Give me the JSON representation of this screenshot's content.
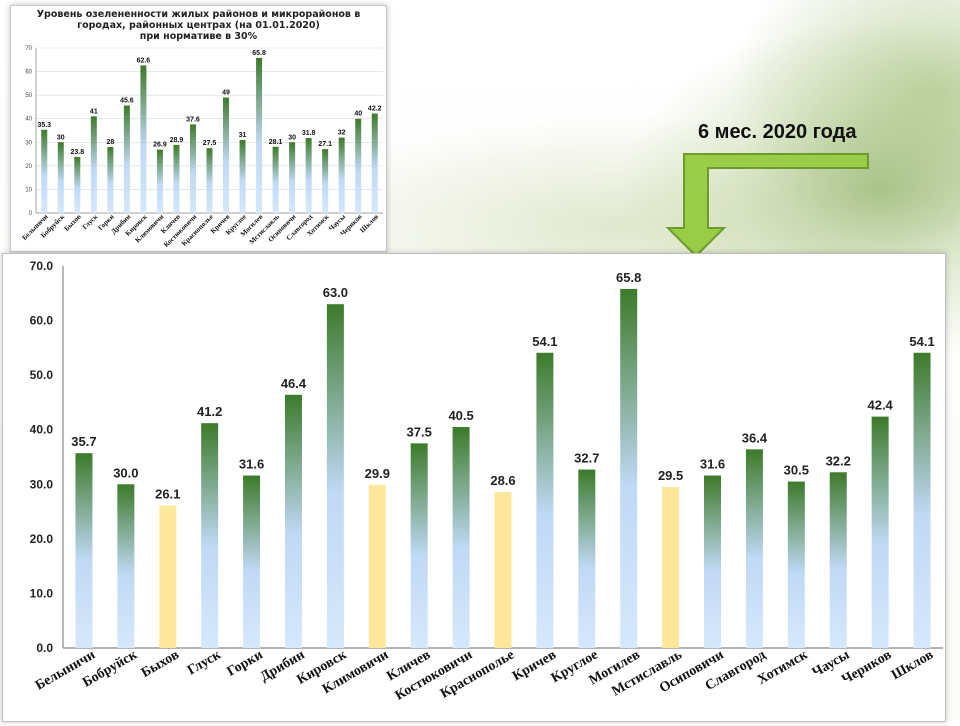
{
  "colors": {
    "bar_top": "#3d7a2a",
    "bar_bottom": "#d6e8fb",
    "bar_mid": "#c0d9f5",
    "highlight": "#fde79a",
    "arrow_fill": "#9acd47",
    "arrow_stroke": "#6f9a2c"
  },
  "period_label": "6 мес. 2020 года",
  "chart_data": [
    {
      "id": "previous",
      "type": "bar",
      "title_lines": [
        "Уровень озелененности жилых районов и микрорайонов в",
        "городах, районных центрах (на 01.01.2020)",
        "при нормативе в 30%"
      ],
      "categories": [
        "Белыничи",
        "Бобруйск",
        "Быхов",
        "Глуск",
        "Горки",
        "Дрибин",
        "Кировск",
        "Климовичи",
        "Кличев",
        "Костюковичи",
        "Краснополье",
        "Кричев",
        "Круглое",
        "Могилев",
        "Мстиславль",
        "Осиповичи",
        "Славгород",
        "Хотимск",
        "Чаусы",
        "Чериков",
        "Шклов"
      ],
      "values": [
        35.3,
        30,
        23.8,
        41,
        28,
        45.6,
        62.6,
        26.9,
        28.9,
        37.6,
        27.5,
        49,
        31,
        65.8,
        28.1,
        30,
        31.8,
        27.1,
        32,
        40,
        42.2
      ],
      "labels": [
        "35.3",
        "30",
        "23.8",
        "41",
        "28",
        "45.6",
        "62.6",
        "26.9",
        "28.9",
        "37.6",
        "27.5",
        "49",
        "31",
        "65.8",
        "28.1",
        "30",
        "31.8",
        "27.1",
        "32",
        "40",
        "42.2"
      ],
      "ylim": [
        0,
        70
      ],
      "yticks": [
        "0",
        "10",
        "20",
        "30",
        "40",
        "50",
        "60",
        "70"
      ],
      "ytick_values": [
        0,
        10,
        20,
        30,
        40,
        50,
        60,
        70
      ],
      "grid": true
    },
    {
      "id": "current",
      "type": "bar",
      "title": "",
      "categories": [
        "Белыничи",
        "Бобруйск",
        "Быхов",
        "Глуск",
        "Горки",
        "Дрибин",
        "Кировск",
        "Климовичи",
        "Кличев",
        "Костюковичи",
        "Краснополье",
        "Кричев",
        "Круглое",
        "Могилев",
        "Мстиславль",
        "Осиповичи",
        "Славгород",
        "Хотимск",
        "Чаусы",
        "Чериков",
        "Шклов"
      ],
      "values": [
        35.7,
        30.0,
        26.1,
        41.2,
        31.6,
        46.4,
        63.0,
        29.9,
        37.5,
        40.5,
        28.6,
        54.1,
        32.7,
        65.8,
        29.5,
        31.6,
        36.4,
        30.5,
        32.2,
        42.4,
        54.1
      ],
      "labels": [
        "35.7",
        "30.0",
        "26.1",
        "41.2",
        "31.6",
        "46.4",
        "63.0",
        "29.9",
        "37.5",
        "40.5",
        "28.6",
        "54.1",
        "32.7",
        "65.8",
        "29.5",
        "31.6",
        "36.4",
        "30.5",
        "32.2",
        "42.4",
        "54.1"
      ],
      "below_norm": [
        false,
        false,
        true,
        false,
        false,
        false,
        false,
        true,
        false,
        false,
        true,
        false,
        false,
        false,
        true,
        false,
        false,
        false,
        false,
        false,
        false
      ],
      "ylim": [
        0,
        70
      ],
      "yticks": [
        "0.0",
        "10.0",
        "20.0",
        "30.0",
        "40.0",
        "50.0",
        "60.0",
        "70.0"
      ],
      "ytick_values": [
        0,
        10,
        20,
        30,
        40,
        50,
        60,
        70
      ],
      "grid": false
    }
  ]
}
